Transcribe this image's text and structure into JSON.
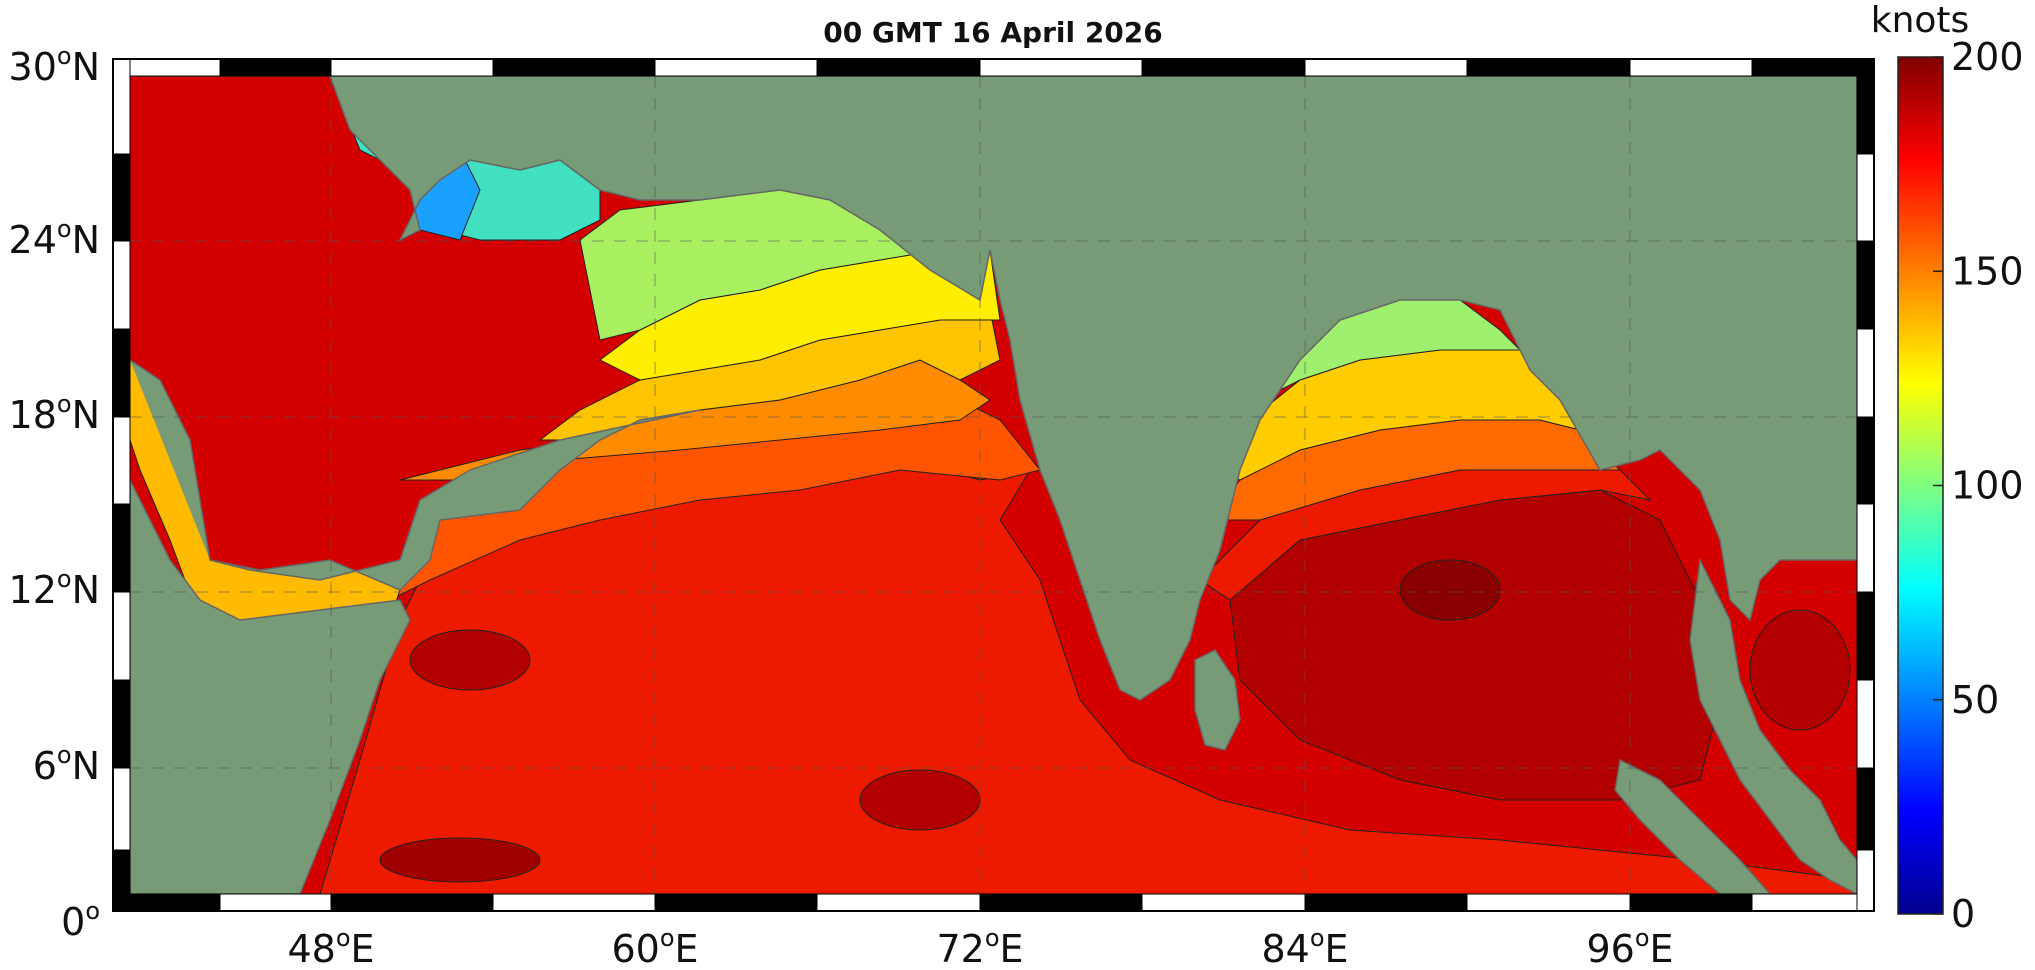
{
  "title": "00 GMT 16 April 2026",
  "colorbar": {
    "unit_label": "knots",
    "ticks": [
      "0",
      "50",
      "100",
      "150",
      "200"
    ],
    "min": 0,
    "max": 200,
    "stops": [
      "#00008f",
      "#0000ff",
      "#0080ff",
      "#00ffff",
      "#80ff80",
      "#ffff00",
      "#ff8000",
      "#ff0000",
      "#800000"
    ]
  },
  "axes": {
    "lat_labels": [
      {
        "text": "30",
        "deg": "o",
        "hem": "N"
      },
      {
        "text": "24",
        "deg": "o",
        "hem": "N"
      },
      {
        "text": "18",
        "deg": "o",
        "hem": "N"
      },
      {
        "text": "12",
        "deg": "o",
        "hem": "N"
      },
      {
        "text": "6",
        "deg": "o",
        "hem": "N"
      },
      {
        "text": "0",
        "deg": "o",
        "hem": ""
      }
    ],
    "lon_labels": [
      {
        "text": "48",
        "deg": "o",
        "hem": "E"
      },
      {
        "text": "60",
        "deg": "o",
        "hem": "E"
      },
      {
        "text": "72",
        "deg": "o",
        "hem": "E"
      },
      {
        "text": "84",
        "deg": "o",
        "hem": "E"
      },
      {
        "text": "96",
        "deg": "o",
        "hem": "E"
      }
    ]
  },
  "colors": {
    "land": "#769b76",
    "border": "#666666",
    "frame_black": "#000000",
    "frame_white": "#ffffff"
  }
}
